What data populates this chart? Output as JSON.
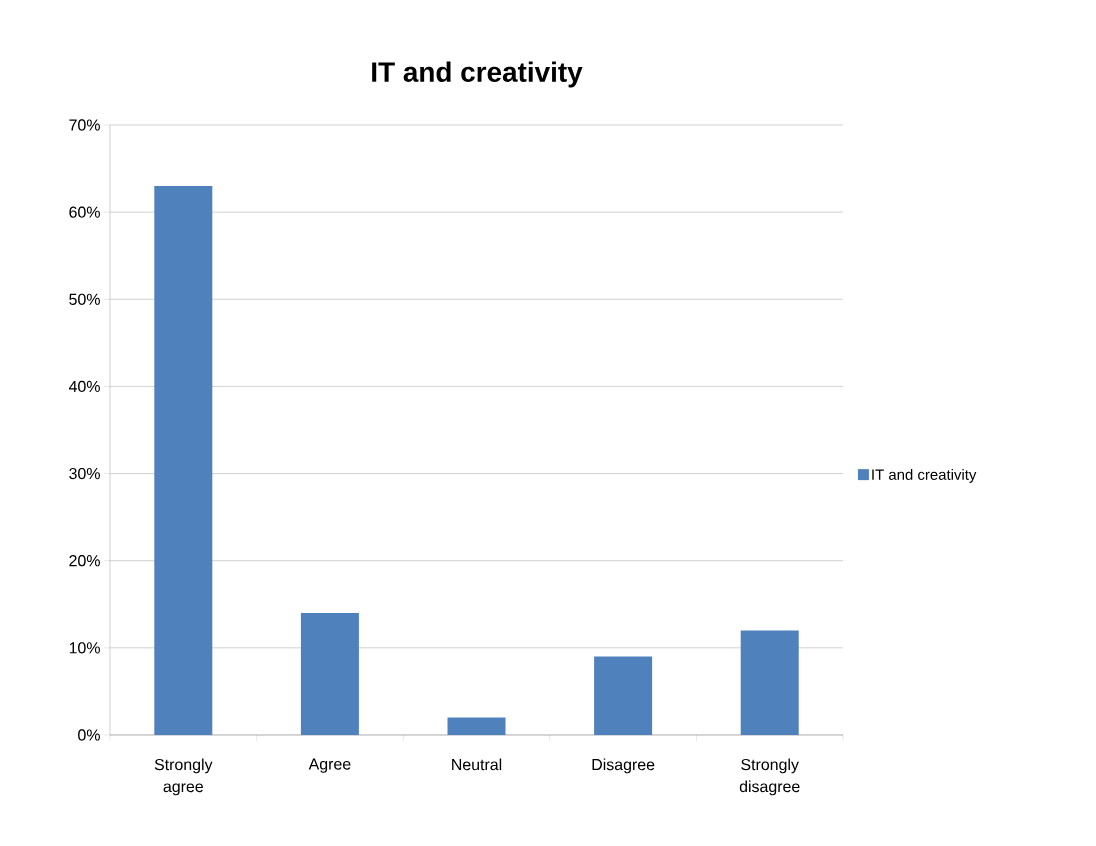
{
  "chart_data": {
    "type": "bar",
    "title": "IT and creativity",
    "categories": [
      "Strongly agree",
      "Agree",
      "Neutral",
      "Disagree",
      "Strongly disagree"
    ],
    "series": [
      {
        "name": "IT and creativity",
        "color": "#4f81bd",
        "values": [
          63,
          14,
          2,
          9,
          12
        ]
      }
    ],
    "ylim": [
      0,
      70
    ],
    "yticks": [
      {
        "value": 0,
        "label": "0%"
      },
      {
        "value": 10,
        "label": "10%"
      },
      {
        "value": 20,
        "label": "20%"
      },
      {
        "value": 30,
        "label": "30%"
      },
      {
        "value": 40,
        "label": "40%"
      },
      {
        "value": 50,
        "label": "50%"
      },
      {
        "value": 60,
        "label": "60%"
      },
      {
        "value": 70,
        "label": "70%"
      }
    ],
    "grid": "y",
    "legend": "right"
  }
}
